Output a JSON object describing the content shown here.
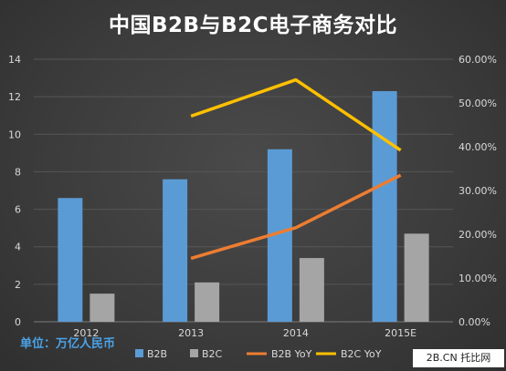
{
  "chart_data": {
    "type": "bar",
    "title": "中国B2B与B2C电子商务对比",
    "unit_note": "单位：万亿人民币",
    "categories": [
      "2012",
      "2013",
      "2014",
      "2015E"
    ],
    "series": [
      {
        "name": "B2B",
        "kind": "bar",
        "axis": "left",
        "color": "#5b9bd5",
        "values": [
          6.6,
          7.6,
          9.2,
          12.3
        ]
      },
      {
        "name": "B2C",
        "kind": "bar",
        "axis": "left",
        "color": "#a5a5a5",
        "values": [
          1.5,
          2.1,
          3.4,
          4.7
        ]
      },
      {
        "name": "B2B YoY",
        "kind": "line",
        "axis": "right",
        "color": "#ed7d31",
        "values": [
          null,
          14.5,
          21.5,
          33.5
        ]
      },
      {
        "name": "B2C YoY",
        "kind": "line",
        "axis": "right",
        "color": "#ffc000",
        "values": [
          null,
          47.0,
          55.3,
          39.2
        ]
      }
    ],
    "y_left": {
      "min": 0,
      "max": 14,
      "ticks": [
        "0",
        "2",
        "4",
        "6",
        "8",
        "10",
        "12",
        "14"
      ]
    },
    "y_right": {
      "min": 0,
      "max": 60,
      "ticks": [
        "0.00%",
        "10.00%",
        "20.00%",
        "30.00%",
        "40.00%",
        "50.00%",
        "60.00%"
      ]
    },
    "grid": true,
    "legend_position": "bottom"
  },
  "watermark": "2B.CN 托比网"
}
